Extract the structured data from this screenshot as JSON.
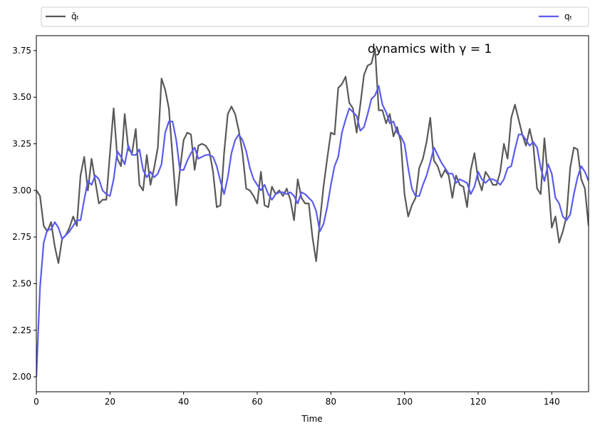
{
  "chart_data": {
    "type": "line",
    "annotation": "dynamics with γ = 1",
    "x_label": "Time",
    "legend": "top",
    "xlim": [
      0,
      150
    ],
    "xticks": [
      0,
      20,
      40,
      60,
      80,
      100,
      120,
      140
    ],
    "ylim": [
      1.92,
      3.83
    ],
    "yticks": [
      {
        "value": 2,
        "label": "2.00"
      },
      {
        "value": 2.25,
        "label": "2.25"
      },
      {
        "value": 2.5,
        "label": "2.50"
      },
      {
        "value": 2.75,
        "label": "2.75"
      },
      {
        "value": 3,
        "label": "3.00"
      },
      {
        "value": 3.25,
        "label": "3.25"
      },
      {
        "value": 3.5,
        "label": "3.50"
      },
      {
        "value": 3.75,
        "label": "3.75"
      }
    ],
    "grid": false,
    "x": [
      0,
      1,
      2,
      3,
      4,
      5,
      6,
      7,
      8,
      9,
      10,
      11,
      12,
      13,
      14,
      15,
      16,
      17,
      18,
      19,
      20,
      21,
      22,
      23,
      24,
      25,
      26,
      27,
      28,
      29,
      30,
      31,
      32,
      33,
      34,
      35,
      36,
      37,
      38,
      39,
      40,
      41,
      42,
      43,
      44,
      45,
      46,
      47,
      48,
      49,
      50,
      51,
      52,
      53,
      54,
      55,
      56,
      57,
      58,
      59,
      60,
      61,
      62,
      63,
      64,
      65,
      66,
      67,
      68,
      69,
      70,
      71,
      72,
      73,
      74,
      75,
      76,
      77,
      78,
      79,
      80,
      81,
      82,
      83,
      84,
      85,
      86,
      87,
      88,
      89,
      90,
      91,
      92,
      93,
      94,
      95,
      96,
      97,
      98,
      99,
      100,
      101,
      102,
      103,
      104,
      105,
      106,
      107,
      108,
      109,
      110,
      111,
      112,
      113,
      114,
      115,
      116,
      117,
      118,
      119,
      120,
      121,
      122,
      123,
      124,
      125,
      126,
      127,
      128,
      129,
      130,
      131,
      132,
      133,
      134,
      135,
      136,
      137,
      138,
      139,
      140,
      141,
      142,
      143,
      144,
      145,
      146,
      147,
      148,
      149,
      150
    ],
    "series": [
      {
        "name": "q̄ₜ",
        "color": "#595959",
        "values": [
          3.0,
          2.97,
          2.81,
          2.78,
          2.83,
          2.7,
          2.61,
          2.74,
          2.76,
          2.8,
          2.86,
          2.81,
          3.08,
          3.18,
          3.0,
          3.17,
          3.05,
          2.93,
          2.95,
          2.95,
          3.2,
          3.44,
          3.17,
          3.13,
          3.41,
          3.22,
          3.2,
          3.33,
          3.03,
          3.0,
          3.19,
          3.03,
          3.12,
          3.23,
          3.6,
          3.54,
          3.44,
          3.18,
          2.92,
          3.11,
          3.27,
          3.31,
          3.3,
          3.11,
          3.24,
          3.25,
          3.24,
          3.21,
          3.1,
          2.91,
          2.92,
          3.2,
          3.41,
          3.45,
          3.41,
          3.32,
          3.2,
          3.01,
          3.0,
          2.97,
          2.93,
          3.1,
          2.92,
          2.91,
          3.02,
          2.98,
          3.0,
          2.97,
          3.01,
          2.95,
          2.84,
          3.06,
          2.96,
          2.93,
          2.93,
          2.75,
          2.62,
          2.83,
          3.02,
          3.17,
          3.31,
          3.3,
          3.55,
          3.57,
          3.61,
          3.47,
          3.44,
          3.31,
          3.46,
          3.62,
          3.67,
          3.68,
          3.76,
          3.43,
          3.43,
          3.36,
          3.41,
          3.29,
          3.34,
          3.26,
          2.98,
          2.86,
          2.92,
          2.96,
          3.12,
          3.17,
          3.26,
          3.39,
          3.16,
          3.13,
          3.07,
          3.11,
          3.08,
          2.96,
          3.08,
          3.03,
          3.02,
          2.91,
          3.11,
          3.2,
          3.06,
          3.0,
          3.1,
          3.07,
          3.03,
          3.03,
          3.1,
          3.25,
          3.17,
          3.39,
          3.46,
          3.38,
          3.3,
          3.24,
          3.33,
          3.24,
          3.01,
          2.98,
          3.28,
          3.06,
          2.8,
          2.86,
          2.72,
          2.78,
          2.86,
          3.12,
          3.23,
          3.22,
          3.06,
          3.01,
          2.81
        ]
      },
      {
        "name": "qₜ",
        "color": "#5b5bf0",
        "values": [
          2.0,
          2.48,
          2.72,
          2.79,
          2.79,
          2.83,
          2.8,
          2.74,
          2.76,
          2.78,
          2.81,
          2.84,
          2.84,
          2.95,
          3.05,
          3.03,
          3.08,
          3.06,
          3.0,
          2.98,
          2.97,
          3.06,
          3.21,
          3.18,
          3.14,
          3.24,
          3.19,
          3.19,
          3.22,
          3.11,
          3.07,
          3.1,
          3.07,
          3.09,
          3.14,
          3.31,
          3.37,
          3.37,
          3.27,
          3.11,
          3.11,
          3.16,
          3.2,
          3.23,
          3.17,
          3.18,
          3.19,
          3.19,
          3.18,
          3.13,
          3.05,
          2.98,
          3.07,
          3.2,
          3.27,
          3.3,
          3.27,
          3.21,
          3.12,
          3.06,
          3.03,
          3.0,
          3.03,
          2.98,
          2.95,
          2.98,
          2.99,
          2.99,
          2.98,
          2.99,
          2.97,
          2.93,
          2.99,
          2.98,
          2.96,
          2.94,
          2.89,
          2.78,
          2.82,
          2.91,
          3.03,
          3.13,
          3.18,
          3.31,
          3.38,
          3.44,
          3.42,
          3.4,
          3.32,
          3.34,
          3.41,
          3.49,
          3.51,
          3.56,
          3.46,
          3.42,
          3.36,
          3.37,
          3.31,
          3.29,
          3.25,
          3.12,
          3.01,
          2.97,
          2.97,
          3.03,
          3.08,
          3.15,
          3.23,
          3.19,
          3.15,
          3.12,
          3.09,
          3.09,
          3.04,
          3.06,
          3.05,
          3.04,
          2.98,
          3.02,
          3.1,
          3.06,
          3.04,
          3.06,
          3.06,
          3.05,
          3.03,
          3.06,
          3.12,
          3.13,
          3.22,
          3.3,
          3.3,
          3.27,
          3.24,
          3.26,
          3.23,
          3.12,
          3.05,
          3.14,
          3.09,
          2.96,
          2.93,
          2.86,
          2.84,
          2.87,
          2.98,
          3.07,
          3.13,
          3.1,
          3.05
        ]
      }
    ]
  }
}
